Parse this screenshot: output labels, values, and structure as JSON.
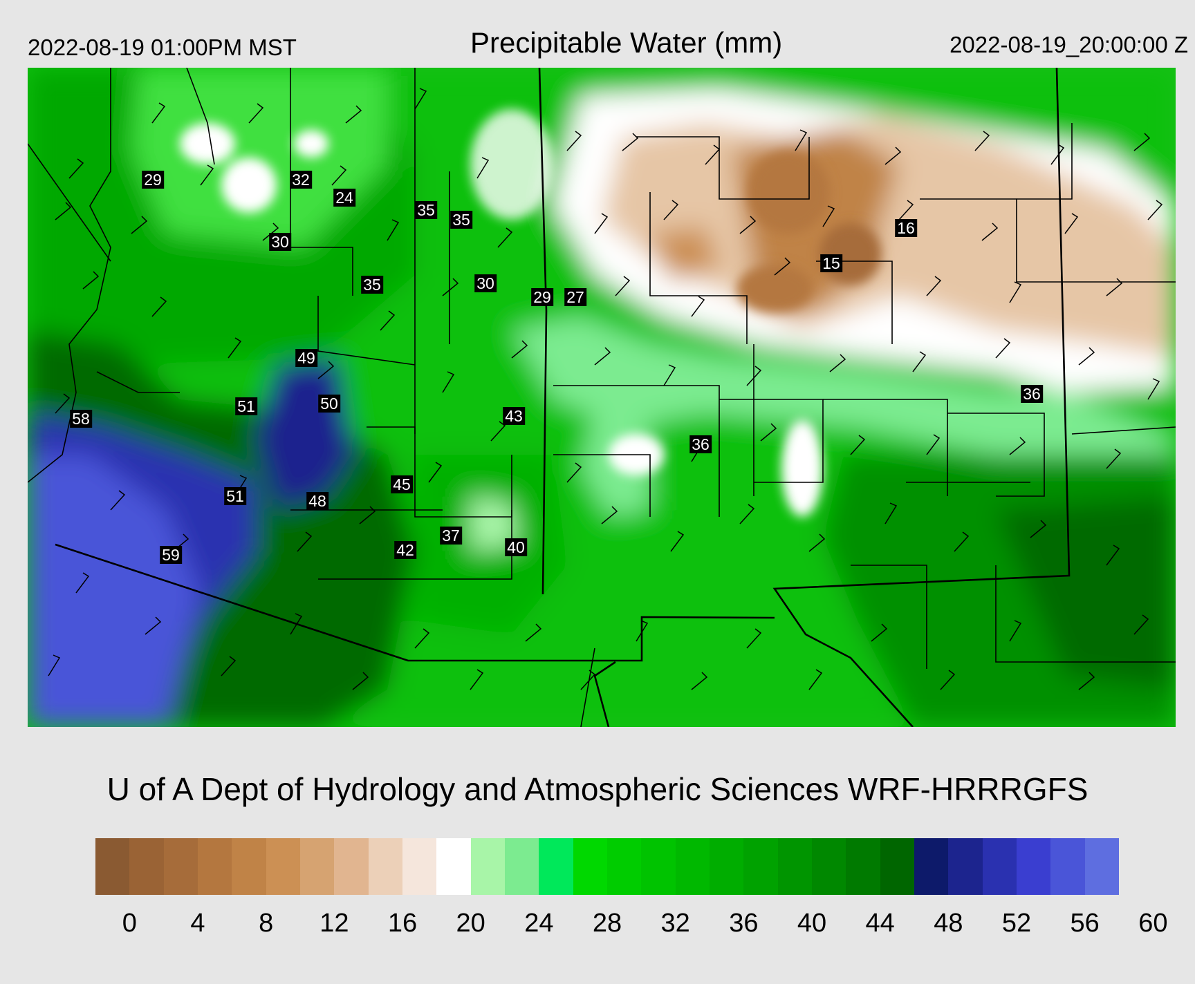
{
  "header": {
    "valid_local": "2022-08-19 01:00PM MST",
    "title": "Precipitable Water (mm)",
    "valid_utc": "2022-08-19_20:00:00 Z"
  },
  "station_values": [
    "29",
    "32",
    "24",
    "35",
    "35",
    "30",
    "35",
    "30",
    "29",
    "27",
    "16",
    "15",
    "49",
    "51",
    "50",
    "58",
    "43",
    "36",
    "36",
    "45",
    "51",
    "48",
    "37",
    "42",
    "40",
    "59"
  ],
  "credit": "U of A Dept of Hydrology and Atmospheric Sciences WRF-HRRRGFS",
  "colorbar": {
    "units": "mm",
    "colors": [
      "#8a5a32",
      "#9a6335",
      "#a66c3a",
      "#b4773f",
      "#c08347",
      "#cc9054",
      "#d6a371",
      "#e1b590",
      "#ecd0b8",
      "#f5e6dc",
      "#ffffff",
      "#a8f5a8",
      "#7ceb90",
      "#00e85a",
      "#00d800",
      "#00cc00",
      "#00c300",
      "#00b800",
      "#00ad00",
      "#00a200",
      "#009500",
      "#008800",
      "#007a00",
      "#006600",
      "#0d1a6a",
      "#1c248e",
      "#2a31b0",
      "#3a3ed0",
      "#4a55d8",
      "#5e6ee0"
    ],
    "tick_labels": [
      "0",
      "4",
      "8",
      "12",
      "16",
      "20",
      "24",
      "28",
      "32",
      "36",
      "40",
      "44",
      "48",
      "52",
      "56",
      "60"
    ]
  }
}
